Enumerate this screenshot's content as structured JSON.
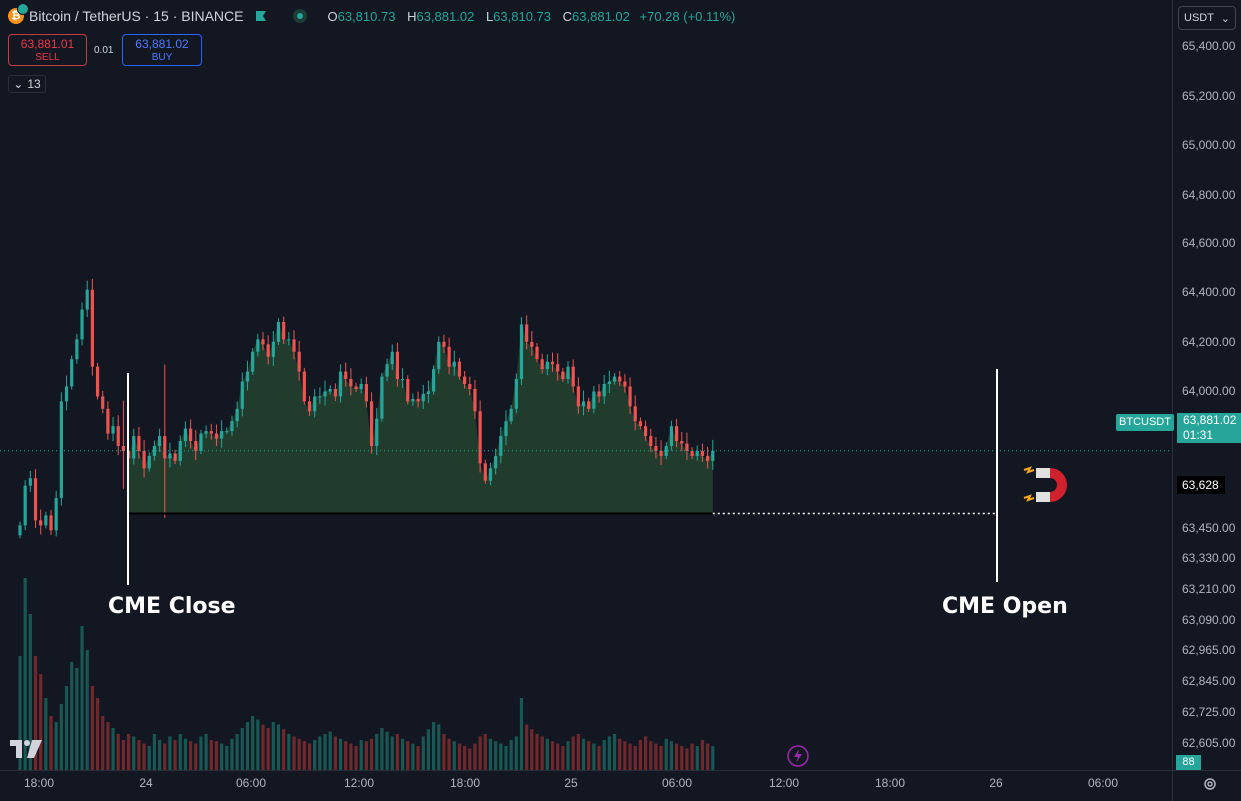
{
  "header": {
    "symbol": "Bitcoin / TetherUS · 15 · BINANCE",
    "ohlc": {
      "o_label": "O",
      "o_value": "63,810.73",
      "h_label": "H",
      "h_value": "63,881.02",
      "l_label": "L",
      "l_value": "63,810.73",
      "c_label": "C",
      "c_value": "63,881.02",
      "change": "+70.28 (+0.11%)"
    }
  },
  "trade": {
    "sell_price": "63,881.01",
    "sell_label": "SELL",
    "spread": "0.01",
    "buy_price": "63,881.02",
    "buy_label": "BUY"
  },
  "collapse": {
    "count": "13"
  },
  "currency": {
    "label": "USDT"
  },
  "price_scale": {
    "current_symbol": "BTCUSDT",
    "current_price": "63,881.02",
    "countdown": "01:31",
    "gap_level": "63,628",
    "volume": "88"
  },
  "annotations": {
    "cme_close": "CME Close",
    "cme_open": "CME Open"
  },
  "colors": {
    "up": "#26a69a",
    "down": "#ef5350",
    "background": "#131722",
    "fill": "#24432f",
    "label_bg": "#26a69a"
  },
  "icons": [
    "coin-icon",
    "flag-icon",
    "live-dot-icon",
    "chevron-down-icon",
    "magnet-icon",
    "tradingview-logo-icon",
    "bolt-icon",
    "gear-icon"
  ],
  "chart_data": {
    "type": "line",
    "title": "Bitcoin / TetherUS · 15 · BINANCE",
    "xlabel": "",
    "ylabel": "",
    "x_ticks": [
      "18:00",
      "24",
      "06:00",
      "12:00",
      "18:00",
      "25",
      "06:00",
      "12:00",
      "18:00",
      "26",
      "06:00"
    ],
    "y_ticks": [
      "65,400.00",
      "65,200.00",
      "65,000.00",
      "64,800.00",
      "64,600.00",
      "64,400.00",
      "64,200.00",
      "64,000.00",
      "63,450.00",
      "63,330.00",
      "63,210.00",
      "63,090.00",
      "62,965.00",
      "62,845.00",
      "62,725.00",
      "62,605.00"
    ],
    "ylim": [
      62560,
      65480
    ],
    "series": [
      {
        "values": [
          63580,
          63740,
          63770,
          63600,
          63580,
          63620,
          63560,
          63690,
          64080,
          64140,
          64250,
          64330,
          64450,
          64530,
          64220,
          64100,
          64050,
          63950,
          63980,
          63900,
          63880,
          63850,
          63940,
          63880,
          63810,
          63860,
          63900,
          63940,
          63850,
          63870,
          63840,
          63920,
          63970,
          63920,
          63880,
          63950,
          63960,
          63950,
          63930,
          63960,
          63960,
          64000,
          64050,
          64160,
          64200,
          64280,
          64330,
          64310,
          64260,
          64320,
          64400,
          64330,
          64330,
          64280,
          64200,
          64080,
          64040,
          64100,
          64100,
          64120,
          64130,
          64100,
          64200,
          64170,
          64140,
          64130,
          64150,
          64080,
          63900,
          64010,
          64180,
          64230,
          64280,
          64170,
          64170,
          64080,
          64090,
          64080,
          64110,
          64120,
          64210,
          64320,
          64300,
          64220,
          64240,
          64180,
          64150,
          64130,
          64040,
          63830,
          63760,
          63810,
          63860,
          63940,
          64000,
          64050,
          64170,
          64390,
          64320,
          64300,
          64250,
          64210,
          64240,
          64230,
          64200,
          64170,
          64220,
          64140,
          64060,
          64080,
          64050,
          64120,
          64100,
          64150,
          64160,
          64180,
          64160,
          64140,
          64060,
          64000,
          63980,
          63940,
          63900,
          63880,
          63860,
          63900,
          63980,
          63920,
          63910,
          63880,
          63860,
          63880,
          63860,
          63840,
          63881
        ]
      }
    ],
    "volume": [
      95,
      160,
      130,
      95,
      80,
      60,
      45,
      40,
      55,
      70,
      90,
      85,
      120,
      100,
      70,
      60,
      45,
      40,
      35,
      30,
      25,
      30,
      28,
      25,
      22,
      20,
      30,
      25,
      22,
      28,
      25,
      30,
      26,
      24,
      22,
      28,
      30,
      25,
      24,
      22,
      20,
      26,
      30,
      35,
      40,
      45,
      42,
      38,
      35,
      40,
      38,
      34,
      30,
      28,
      26,
      24,
      22,
      25,
      28,
      30,
      32,
      28,
      26,
      24,
      22,
      20,
      25,
      24,
      26,
      30,
      35,
      32,
      28,
      30,
      26,
      24,
      22,
      20,
      28,
      34,
      40,
      38,
      30,
      26,
      24,
      22,
      20,
      18,
      22,
      28,
      30,
      26,
      24,
      22,
      20,
      25,
      28,
      60,
      38,
      34,
      30,
      28,
      26,
      24,
      22,
      20,
      24,
      28,
      30,
      26,
      24,
      22,
      20,
      25,
      28,
      30,
      26,
      24,
      22,
      20,
      25,
      28,
      24,
      22,
      20,
      26,
      24,
      22,
      20,
      18,
      22,
      20,
      25,
      22,
      20
    ],
    "gap_level": 63628,
    "current_price": 63881.02,
    "cme_close_index": 21,
    "cme_open_index": 240
  }
}
